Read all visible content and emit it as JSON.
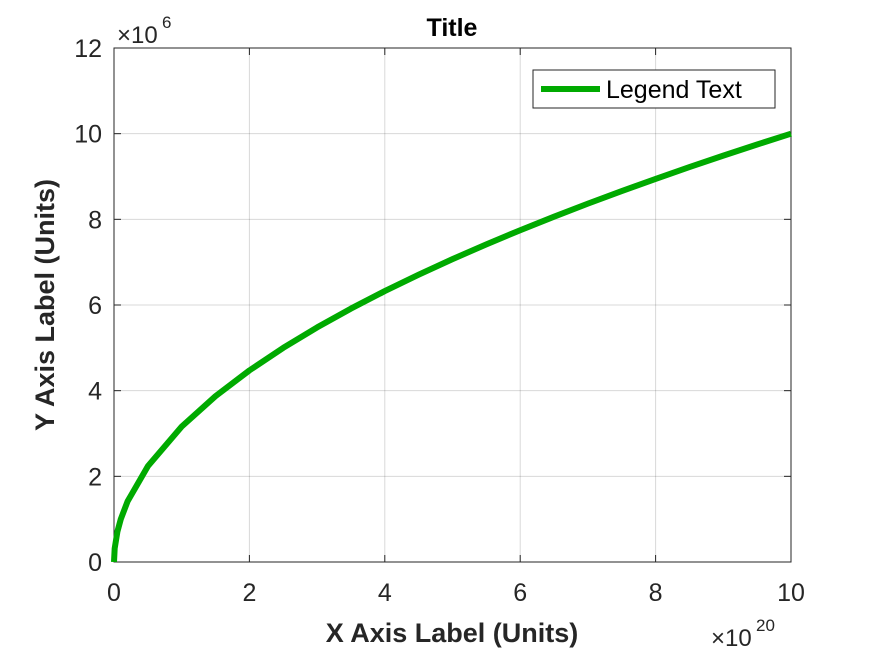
{
  "chart_data": {
    "type": "line",
    "title": "Title",
    "xlabel": "X Axis Label (Units)",
    "ylabel": "Y Axis Label (Units)",
    "xlim": [
      0,
      1e+21
    ],
    "ylim": [
      0,
      12000000.0
    ],
    "x_ticks": [
      0,
      2e+20,
      4e+20,
      6e+20,
      8e+20,
      1e+21
    ],
    "x_tick_labels": [
      "0",
      "2",
      "4",
      "6",
      "8",
      "10"
    ],
    "y_ticks": [
      0,
      2000000.0,
      4000000.0,
      6000000.0,
      8000000.0,
      10000000.0,
      12000000.0
    ],
    "y_tick_labels": [
      "0",
      "2",
      "4",
      "6",
      "8",
      "10",
      "12"
    ],
    "x_multiplier": {
      "base": "×10",
      "exponent": "20"
    },
    "y_multiplier": {
      "base": "×10",
      "exponent": "6"
    },
    "grid": true,
    "legend": {
      "position": "top-right"
    },
    "series": [
      {
        "name": "Legend Text",
        "color": "#00aa00",
        "x": [
          0,
          1e+18,
          5e+18,
          1e+19,
          2e+19,
          5e+19,
          1e+20,
          1.5e+20,
          2e+20,
          2.5e+20,
          3e+20,
          3.5e+20,
          4e+20,
          4.5e+20,
          5e+20,
          5.5e+20,
          6e+20,
          6.5e+20,
          7e+20,
          7.5e+20,
          8e+20,
          8.5e+20,
          9e+20,
          9.5e+20,
          1e+21
        ],
        "y": [
          0,
          316228,
          707107,
          1000000,
          1414214,
          2236068,
          3162278,
          3872983,
          4472136,
          5000000,
          5477226,
          5916080,
          6324555,
          6708204,
          7071068,
          7416198,
          7745967,
          8062258,
          8366600,
          8660254,
          8944272,
          9219544,
          9486833,
          9746794,
          10000000
        ]
      }
    ]
  }
}
